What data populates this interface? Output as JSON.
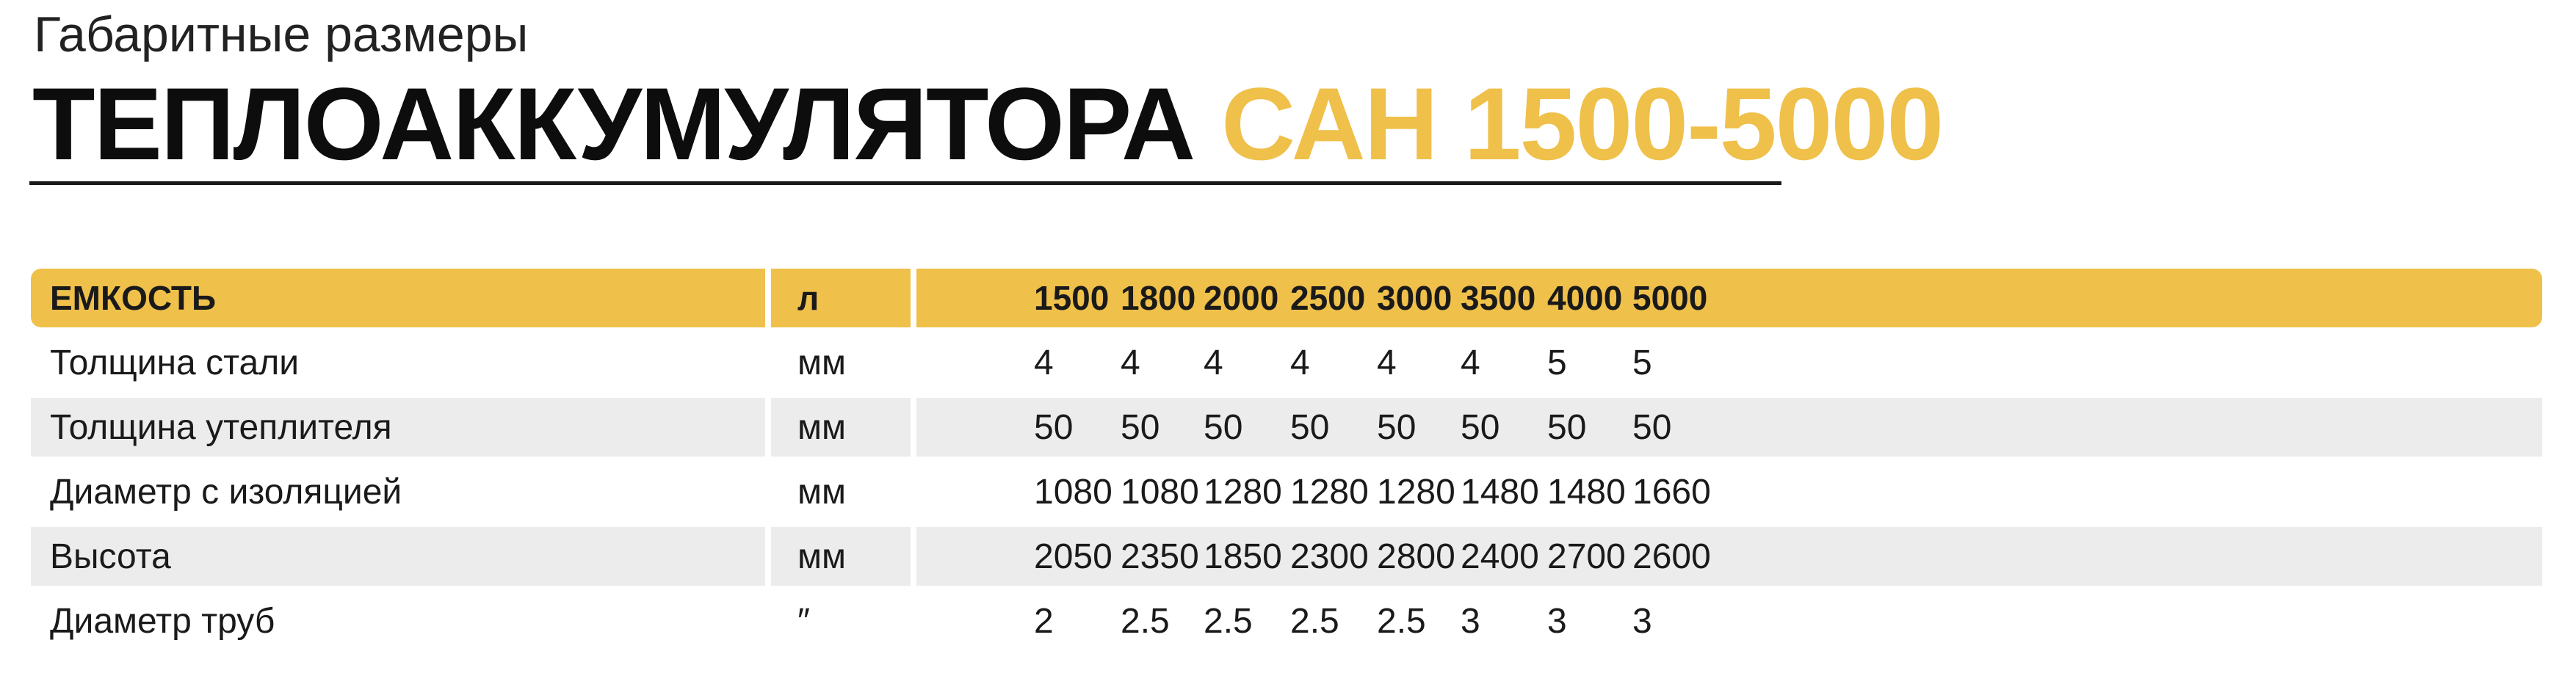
{
  "heading": {
    "subtitle": "Габаритные размеры",
    "title_main": "ТЕПЛОАККУМУЛЯТОРА",
    "title_accent": "САН 1500-5000"
  },
  "colors": {
    "accent": "#efc04a",
    "row_shade": "#ececec",
    "text": "#1a1a1a"
  },
  "table": {
    "header": {
      "name": "ЕМКОСТЬ",
      "unit": "л",
      "values": [
        "1500",
        "1800",
        "2000",
        "2500",
        "3000",
        "3500",
        "4000",
        "5000"
      ]
    },
    "rows": [
      {
        "name": "Толщина стали",
        "unit": "мм",
        "values": [
          "4",
          "4",
          "4",
          "4",
          "4",
          "4",
          "5",
          "5"
        ],
        "shaded": false
      },
      {
        "name": "Толщина утеплителя",
        "unit": "мм",
        "values": [
          "50",
          "50",
          "50",
          "50",
          "50",
          "50",
          "50",
          "50"
        ],
        "shaded": true
      },
      {
        "name": "Диаметр с изоляцией",
        "unit": "мм",
        "values": [
          "1080",
          "1080",
          "1280",
          "1280",
          "1280",
          "1480",
          "1480",
          "1660"
        ],
        "shaded": false
      },
      {
        "name": "Высота",
        "unit": "мм",
        "values": [
          "2050",
          "2350",
          "1850",
          "2300",
          "2800",
          "2400",
          "2700",
          "2600"
        ],
        "shaded": true
      },
      {
        "name": "Диаметр труб",
        "unit": "″",
        "values": [
          "2",
          "2.5",
          "2.5",
          "2.5",
          "2.5",
          "3",
          "3",
          "3"
        ],
        "shaded": false
      }
    ]
  }
}
